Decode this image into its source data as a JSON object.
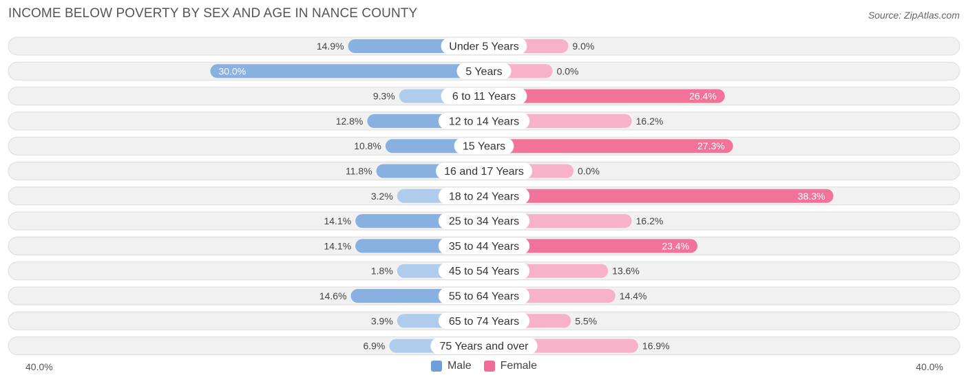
{
  "chart_data": {
    "type": "bar",
    "orientation": "horizontal-diverging",
    "title": "INCOME BELOW POVERTY BY SEX AND AGE IN NANCE COUNTY",
    "source": "Source: ZipAtlas.com",
    "categories": [
      "Under 5 Years",
      "5 Years",
      "6 to 11 Years",
      "12 to 14 Years",
      "15 Years",
      "16 and 17 Years",
      "18 to 24 Years",
      "25 to 34 Years",
      "35 to 44 Years",
      "45 to 54 Years",
      "55 to 64 Years",
      "65 to 74 Years",
      "75 Years and over"
    ],
    "series": [
      {
        "name": "Male",
        "values": [
          14.9,
          30.0,
          9.3,
          12.8,
          10.8,
          11.8,
          3.2,
          14.1,
          14.1,
          1.8,
          14.6,
          3.9,
          6.9
        ]
      },
      {
        "name": "Female",
        "values": [
          9.0,
          0.0,
          26.4,
          16.2,
          27.3,
          0.0,
          38.3,
          16.2,
          23.4,
          13.6,
          14.4,
          5.5,
          16.9
        ]
      }
    ],
    "value_labels": {
      "Male": [
        "14.9%",
        "30.0%",
        "9.3%",
        "12.8%",
        "10.8%",
        "11.8%",
        "3.2%",
        "14.1%",
        "14.1%",
        "1.8%",
        "14.6%",
        "3.9%",
        "6.9%"
      ],
      "Female": [
        "9.0%",
        "0.0%",
        "26.4%",
        "16.2%",
        "27.3%",
        "0.0%",
        "38.3%",
        "16.2%",
        "23.4%",
        "13.6%",
        "14.4%",
        "5.5%",
        "16.9%"
      ]
    },
    "xlim": [
      -40,
      40
    ],
    "axis_min_label": "40.0%",
    "axis_max_label": "40.0%",
    "legend_position": "bottom-center",
    "colors": {
      "male_strong": "#6a9fdc",
      "male_light": "#a9c8ec",
      "female_strong": "#f06b95",
      "female_light": "#f7abc4",
      "row_bg": "#f1f1f1",
      "row_border": "#dcdcdc"
    }
  }
}
